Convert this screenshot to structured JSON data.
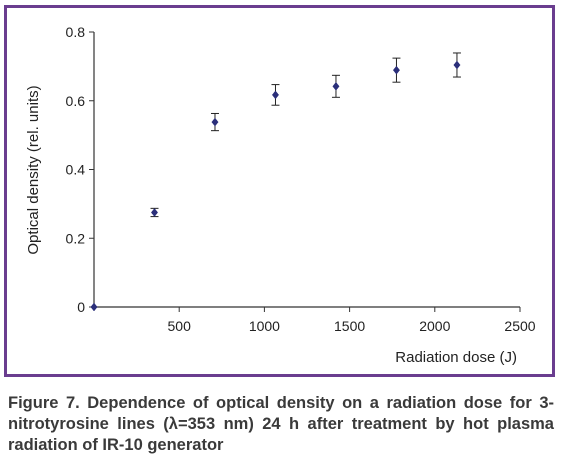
{
  "chart_data": {
    "type": "scatter",
    "title": "",
    "xlabel": "Radiation dose (J)",
    "ylabel": "Optical density (rel. units)",
    "xlim": [
      0,
      2500
    ],
    "ylim": [
      0,
      0.8
    ],
    "x_ticks": [
      500,
      1000,
      1500,
      2000,
      2500
    ],
    "x_tick_labels": [
      "500",
      "1000",
      "1500",
      "2000",
      "2500"
    ],
    "y_ticks": [
      0,
      0.2,
      0.4,
      0.6,
      0.8
    ],
    "y_tick_labels": [
      "0",
      "0.2",
      "0.4",
      "0.6",
      "0.8"
    ],
    "grid": false,
    "legend": "none",
    "marker_color": "#2b2f7a",
    "series": [
      {
        "x": [
          0,
          355,
          710,
          1065,
          1420,
          1775,
          2130
        ],
        "y": [
          0,
          0.275,
          0.538,
          0.617,
          0.642,
          0.689,
          0.704
        ],
        "error": [
          0,
          0.012,
          0.025,
          0.03,
          0.032,
          0.035,
          0.035
        ]
      }
    ]
  },
  "caption": "Figure 7. Dependence of optical density on a radiation dose for 3-nitrotyrosine lines (λ=353 nm) 24 h after treatment by hot plasma radiation of IR-10 generator"
}
